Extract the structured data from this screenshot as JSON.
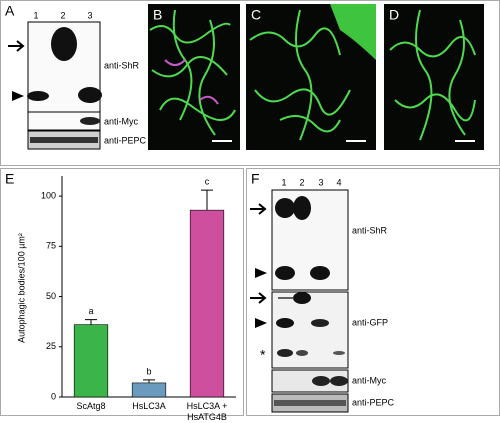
{
  "panels": {
    "A": {
      "label": "A",
      "lanes": [
        "1",
        "2",
        "3"
      ],
      "blots": [
        "anti-ShR",
        "anti-Myc",
        "anti-PEPC"
      ]
    },
    "B": {
      "label": "B"
    },
    "C": {
      "label": "C"
    },
    "D": {
      "label": "D"
    },
    "E": {
      "label": "E"
    },
    "F": {
      "label": "F",
      "lanes": [
        "1",
        "2",
        "3",
        "4"
      ],
      "blots": [
        "anti-ShR",
        "anti-GFP",
        "anti-Myc",
        "anti-PEPC"
      ],
      "marker": "*"
    }
  },
  "chart_data": {
    "type": "bar",
    "y_label": "Autophagic bodies/100 µm²",
    "categories": [
      "ScAtg8",
      "HsLC3A",
      "HsLC3A + HsATG4B"
    ],
    "values": [
      36,
      7,
      93
    ],
    "errors": [
      2.5,
      1.5,
      10
    ],
    "annotations": [
      "a",
      "b",
      "c"
    ],
    "colors": [
      "#3bb54a",
      "#6a9bbd",
      "#cf4f9f"
    ],
    "ylim": [
      0,
      110
    ],
    "yticks": [
      0,
      25,
      50,
      75,
      100
    ],
    "grid": false
  }
}
